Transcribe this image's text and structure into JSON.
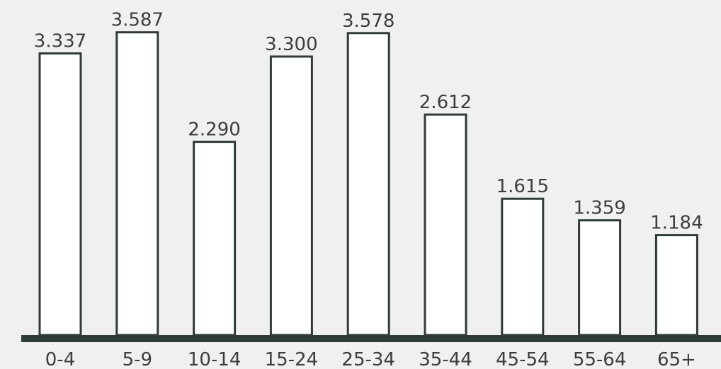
{
  "chart_data": {
    "type": "bar",
    "title": "",
    "xlabel": "",
    "ylabel": "",
    "categories": [
      "0-4",
      "5-9",
      "10-14",
      "15-24",
      "25-34",
      "35-44",
      "45-54",
      "55-64",
      "65+"
    ],
    "values": [
      3.337,
      3.587,
      2.29,
      3.3,
      3.578,
      2.612,
      1.615,
      1.359,
      1.184
    ],
    "value_labels": [
      "3.337",
      "3.587",
      "2.290",
      "3.300",
      "3.578",
      "2.612",
      "1.615",
      "1.359",
      "1.184"
    ],
    "ylim": [
      0,
      4.0
    ],
    "grid": false,
    "legend": "none"
  },
  "colors": {
    "background": "#f0f0f0",
    "bar_fill": "#ffffff",
    "bar_stroke": "#2f3b36",
    "baseline": "#2f3b36",
    "text": "#3a3f3c"
  }
}
